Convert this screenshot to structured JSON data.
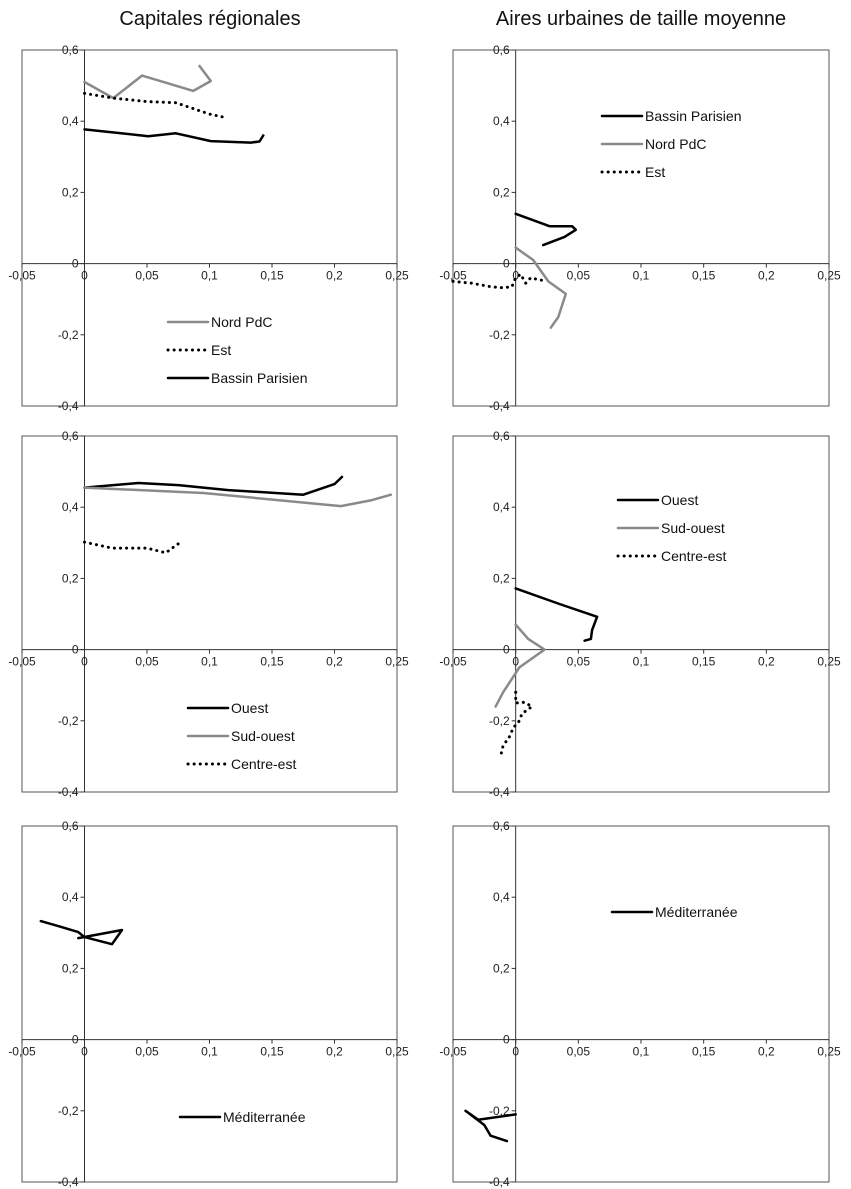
{
  "column_titles": {
    "left": "Capitales régionales",
    "right": "Aires urbaines de taille moyenne"
  },
  "chart_data": [
    {
      "type": "line",
      "title": "",
      "xlim": [
        -0.05,
        0.25
      ],
      "ylim": [
        -0.4,
        0.6
      ],
      "x_ticks": [
        -0.05,
        0,
        0.05,
        0.1,
        0.15,
        0.2,
        0.25
      ],
      "y_ticks": [
        -0.4,
        -0.2,
        0,
        0.2,
        0.4,
        0.6
      ],
      "x_tick_labels": [
        "-0,05",
        "0",
        "0,05",
        "0,1",
        "0,15",
        "0,2",
        "0,25"
      ],
      "y_tick_labels": [
        "-0,4",
        "-0,2",
        "0",
        "0,2",
        "0,4",
        "0,6"
      ],
      "grid": false,
      "legend_position": "bottom-right",
      "series": [
        {
          "name": "Nord PdC",
          "color": "#8a8a8a",
          "dash": "solid",
          "points": [
            [
              0,
              0.51
            ],
            [
              0.023,
              0.465
            ],
            [
              0.046,
              0.528
            ],
            [
              0.087,
              0.485
            ],
            [
              0.101,
              0.513
            ],
            [
              0.092,
              0.555
            ]
          ]
        },
        {
          "name": "Est",
          "color": "#000000",
          "dash": "dotted",
          "points": [
            [
              0,
              0.478
            ],
            [
              0.023,
              0.465
            ],
            [
              0.05,
              0.455
            ],
            [
              0.073,
              0.452
            ],
            [
              0.1,
              0.42
            ],
            [
              0.113,
              0.41
            ]
          ]
        },
        {
          "name": "Bassin Parisien",
          "color": "#000000",
          "dash": "solid",
          "points": [
            [
              0,
              0.377
            ],
            [
              0.051,
              0.358
            ],
            [
              0.073,
              0.366
            ],
            [
              0.101,
              0.344
            ],
            [
              0.133,
              0.34
            ],
            [
              0.14,
              0.343
            ],
            [
              0.143,
              0.36
            ]
          ]
        }
      ]
    },
    {
      "type": "line",
      "title": "",
      "xlim": [
        -0.05,
        0.25
      ],
      "ylim": [
        -0.4,
        0.6
      ],
      "x_ticks": [
        -0.05,
        0,
        0.05,
        0.1,
        0.15,
        0.2,
        0.25
      ],
      "y_ticks": [
        -0.4,
        -0.2,
        0,
        0.2,
        0.4,
        0.6
      ],
      "x_tick_labels": [
        "-0,05",
        "0",
        "0,05",
        "0,1",
        "0,15",
        "0,2",
        "0,25"
      ],
      "y_tick_labels": [
        "-0,4",
        "-0,2",
        "0",
        "0,2",
        "0,4",
        "0,6"
      ],
      "grid": false,
      "legend_position": "top-right",
      "series": [
        {
          "name": "Bassin Parisien",
          "color": "#000000",
          "dash": "solid",
          "points": [
            [
              0,
              0.14
            ],
            [
              0.027,
              0.105
            ],
            [
              0.045,
              0.105
            ],
            [
              0.048,
              0.095
            ],
            [
              0.039,
              0.075
            ],
            [
              0.022,
              0.052
            ]
          ]
        },
        {
          "name": "Nord PdC",
          "color": "#8a8a8a",
          "dash": "solid",
          "points": [
            [
              0,
              0.045
            ],
            [
              0.014,
              0.01
            ],
            [
              0.026,
              -0.05
            ],
            [
              0.04,
              -0.085
            ],
            [
              0.034,
              -0.15
            ],
            [
              0.028,
              -0.18
            ]
          ]
        },
        {
          "name": "Est",
          "color": "#000000",
          "dash": "dotted",
          "points": [
            [
              -0.05,
              -0.05
            ],
            [
              -0.035,
              -0.055
            ],
            [
              -0.02,
              -0.065
            ],
            [
              -0.01,
              -0.068
            ],
            [
              -0.003,
              -0.065
            ],
            [
              0,
              -0.04
            ],
            [
              0.004,
              -0.03
            ],
            [
              0.008,
              -0.055
            ],
            [
              0.012,
              -0.04
            ],
            [
              0.018,
              -0.045
            ],
            [
              0.023,
              -0.048
            ]
          ]
        }
      ]
    },
    {
      "type": "line",
      "title": "",
      "xlim": [
        -0.05,
        0.25
      ],
      "ylim": [
        -0.4,
        0.6
      ],
      "x_ticks": [
        -0.05,
        0,
        0.05,
        0.1,
        0.15,
        0.2,
        0.25
      ],
      "y_ticks": [
        -0.4,
        -0.2,
        0,
        0.2,
        0.4,
        0.6
      ],
      "x_tick_labels": [
        "-0,05",
        "0",
        "0,05",
        "0,1",
        "0,15",
        "0,2",
        "0,25"
      ],
      "y_tick_labels": [
        "-0,4",
        "-0,2",
        "0",
        "0,2",
        "0,4",
        "0,6"
      ],
      "grid": false,
      "legend_position": "bottom-right",
      "series": [
        {
          "name": "Ouest",
          "color": "#000000",
          "dash": "solid",
          "points": [
            [
              0,
              0.455
            ],
            [
              0.043,
              0.468
            ],
            [
              0.075,
              0.462
            ],
            [
              0.115,
              0.448
            ],
            [
              0.175,
              0.435
            ],
            [
              0.2,
              0.465
            ],
            [
              0.206,
              0.485
            ]
          ]
        },
        {
          "name": "Sud-ouest",
          "color": "#8a8a8a",
          "dash": "solid",
          "points": [
            [
              0,
              0.455
            ],
            [
              0.095,
              0.44
            ],
            [
              0.205,
              0.403
            ],
            [
              0.23,
              0.42
            ],
            [
              0.245,
              0.435
            ]
          ]
        },
        {
          "name": "Centre-est",
          "color": "#000000",
          "dash": "dotted",
          "points": [
            [
              0,
              0.302
            ],
            [
              0.022,
              0.285
            ],
            [
              0.05,
              0.285
            ],
            [
              0.065,
              0.272
            ],
            [
              0.072,
              0.29
            ],
            [
              0.077,
              0.302
            ]
          ]
        }
      ]
    },
    {
      "type": "line",
      "title": "",
      "xlim": [
        -0.05,
        0.25
      ],
      "ylim": [
        -0.4,
        0.6
      ],
      "x_ticks": [
        -0.05,
        0,
        0.05,
        0.1,
        0.15,
        0.2,
        0.25
      ],
      "y_ticks": [
        -0.4,
        -0.2,
        0,
        0.2,
        0.4,
        0.6
      ],
      "x_tick_labels": [
        "-0,05",
        "0",
        "0,05",
        "0,1",
        "0,15",
        "0,2",
        "0,25"
      ],
      "y_tick_labels": [
        "-0,4",
        "-0,2",
        "0",
        "0,2",
        "0,4",
        "0,6"
      ],
      "grid": false,
      "legend_position": "top-right",
      "series": [
        {
          "name": "Ouest",
          "color": "#000000",
          "dash": "solid",
          "points": [
            [
              0,
              0.172
            ],
            [
              0.035,
              0.128
            ],
            [
              0.06,
              0.098
            ],
            [
              0.065,
              0.092
            ],
            [
              0.061,
              0.055
            ],
            [
              0.06,
              0.03
            ],
            [
              0.055,
              0.025
            ]
          ]
        },
        {
          "name": "Sud-ouest",
          "color": "#8a8a8a",
          "dash": "solid",
          "points": [
            [
              0,
              0.07
            ],
            [
              0.01,
              0.03
            ],
            [
              0.023,
              0
            ],
            [
              0.003,
              -0.05
            ],
            [
              -0.01,
              -0.12
            ],
            [
              -0.016,
              -0.16
            ]
          ]
        },
        {
          "name": "Centre-est",
          "color": "#000000",
          "dash": "dotted",
          "points": [
            [
              0,
              -0.12
            ],
            [
              0,
              -0.15
            ],
            [
              0.007,
              -0.148
            ],
            [
              0.013,
              -0.16
            ],
            [
              0.005,
              -0.18
            ],
            [
              0.003,
              -0.2
            ],
            [
              -0.002,
              -0.22
            ],
            [
              -0.005,
              -0.245
            ],
            [
              -0.01,
              -0.27
            ],
            [
              -0.012,
              -0.3
            ]
          ]
        }
      ]
    },
    {
      "type": "line",
      "title": "",
      "xlim": [
        -0.05,
        0.25
      ],
      "ylim": [
        -0.4,
        0.6
      ],
      "x_ticks": [
        -0.05,
        0,
        0.05,
        0.1,
        0.15,
        0.2,
        0.25
      ],
      "y_ticks": [
        -0.4,
        -0.2,
        0,
        0.2,
        0.4,
        0.6
      ],
      "x_tick_labels": [
        "-0,05",
        "0",
        "0,05",
        "0,1",
        "0,15",
        "0,2",
        "0,25"
      ],
      "y_tick_labels": [
        "-0,4",
        "-0,2",
        "0",
        "0,2",
        "0,4",
        "0,6"
      ],
      "grid": false,
      "legend_position": "bottom-right",
      "series": [
        {
          "name": "Méditerranée",
          "color": "#000000",
          "dash": "solid",
          "points": [
            [
              -0.035,
              0.333
            ],
            [
              -0.02,
              0.318
            ],
            [
              -0.005,
              0.302
            ],
            [
              0,
              0.288
            ],
            [
              0.022,
              0.268
            ],
            [
              0.03,
              0.308
            ],
            [
              -0.005,
              0.285
            ]
          ]
        }
      ]
    },
    {
      "type": "line",
      "title": "",
      "xlim": [
        -0.05,
        0.25
      ],
      "ylim": [
        -0.4,
        0.6
      ],
      "x_ticks": [
        -0.05,
        0,
        0.05,
        0.1,
        0.15,
        0.2,
        0.25
      ],
      "y_ticks": [
        -0.4,
        -0.2,
        0,
        0.2,
        0.4,
        0.6
      ],
      "x_tick_labels": [
        "-0,05",
        "0",
        "0,05",
        "0,1",
        "0,15",
        "0,2",
        "0,25"
      ],
      "y_tick_labels": [
        "-0,4",
        "-0,2",
        "0",
        "0,2",
        "0,4",
        "0,6"
      ],
      "grid": false,
      "legend_position": "top-right",
      "series": [
        {
          "name": "Méditerranée",
          "color": "#000000",
          "dash": "solid",
          "points": [
            [
              0,
              -0.21
            ],
            [
              -0.03,
              -0.225
            ],
            [
              -0.04,
              -0.2
            ],
            [
              -0.025,
              -0.24
            ],
            [
              -0.02,
              -0.27
            ],
            [
              -0.007,
              -0.285
            ]
          ]
        }
      ]
    }
  ]
}
